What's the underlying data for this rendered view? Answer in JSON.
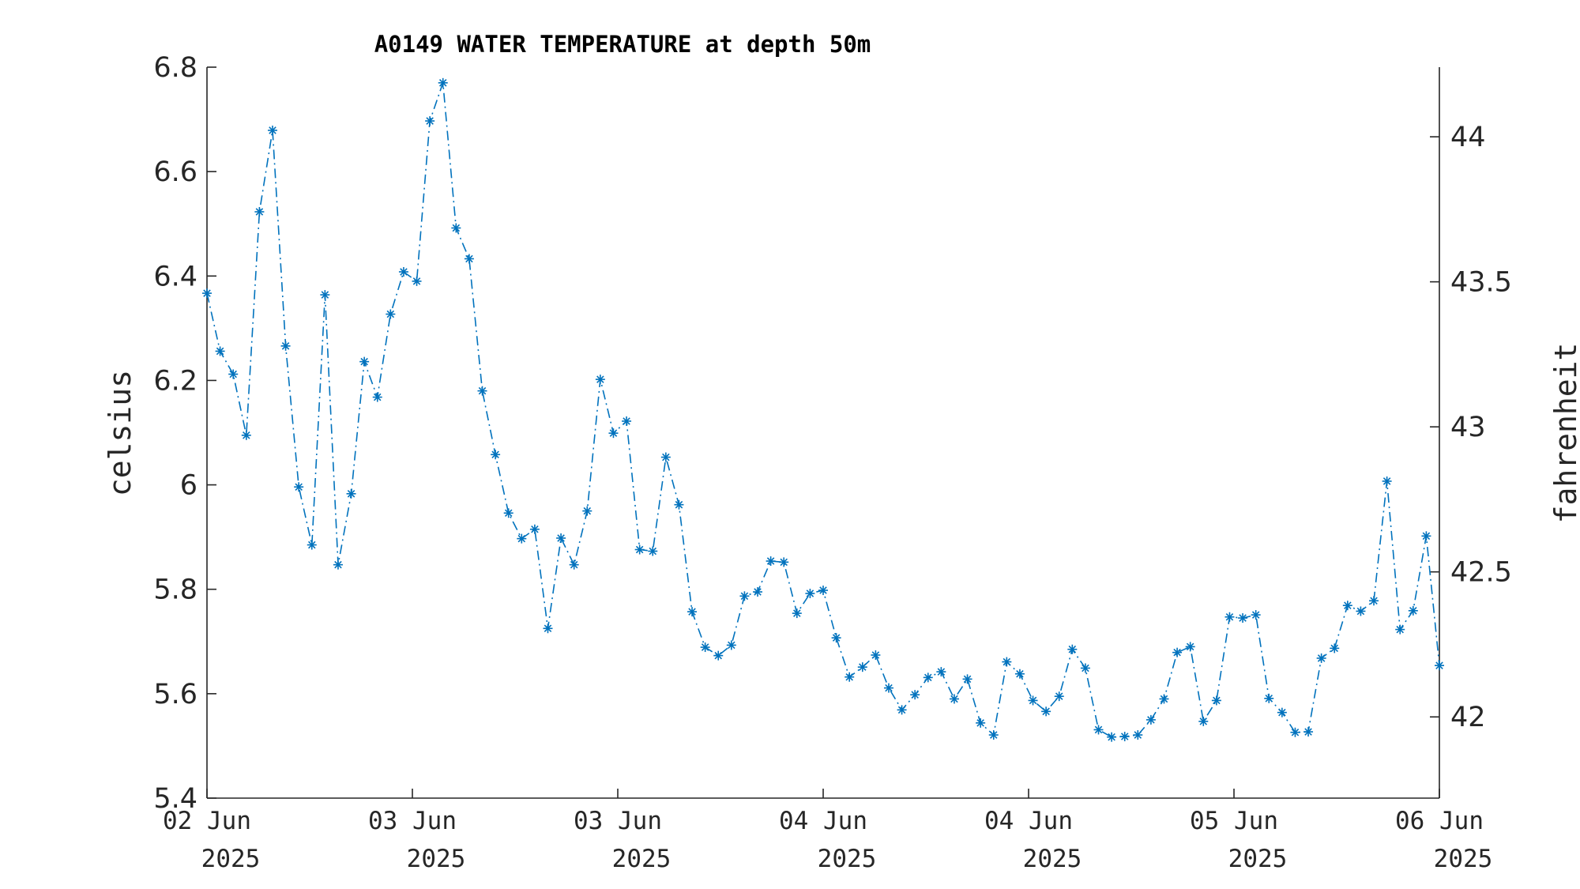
{
  "chart_data": {
    "type": "line",
    "title": "A0149 WATER TEMPERATURE at depth 50m",
    "ylabel": "celsius",
    "y2label": "fahrenheit",
    "ylim": [
      5.4,
      6.8
    ],
    "yticks": [
      "5.4",
      "5.6",
      "5.8",
      "6",
      "6.2",
      "6.4",
      "6.6",
      "6.8"
    ],
    "y2ticks": [
      "42",
      "42.5",
      "43",
      "43.5",
      "44"
    ],
    "xticks": [
      {
        "line1": "02 Jun",
        "line2": "2025"
      },
      {
        "line1": "03 Jun",
        "line2": "2025"
      },
      {
        "line1": "03 Jun",
        "line2": "2025"
      },
      {
        "line1": "04 Jun",
        "line2": "2025"
      },
      {
        "line1": "04 Jun",
        "line2": "2025"
      },
      {
        "line1": "05 Jun",
        "line2": "2025"
      },
      {
        "line1": "06 Jun",
        "line2": "2025"
      }
    ],
    "marker": "asterisk",
    "line_style": "dash-dot",
    "color": "#0072BD",
    "series": [
      {
        "values": [
          6.367,
          6.256,
          6.212,
          6.095,
          6.523,
          6.679,
          6.266,
          5.996,
          5.885,
          6.364,
          5.847,
          5.983,
          6.236,
          6.168,
          6.327,
          6.408,
          6.39,
          6.697,
          6.77,
          6.492,
          6.433,
          6.18,
          6.058,
          5.946,
          5.897,
          5.915,
          5.725,
          5.898,
          5.847,
          5.95,
          6.202,
          6.099,
          6.122,
          5.876,
          5.873,
          6.053,
          5.962,
          5.757,
          5.689,
          5.673,
          5.693,
          5.787,
          5.795,
          5.854,
          5.852,
          5.754,
          5.792,
          5.798,
          5.707,
          5.632,
          5.651,
          5.674,
          5.611,
          5.569,
          5.598,
          5.631,
          5.642,
          5.59,
          5.628,
          5.544,
          5.521,
          5.661,
          5.638,
          5.587,
          5.566,
          5.595,
          5.685,
          5.649,
          5.531,
          5.517,
          5.518,
          5.521,
          5.55,
          5.59,
          5.679,
          5.69,
          5.547,
          5.587,
          5.747,
          5.745,
          5.751,
          5.591,
          5.564,
          5.526,
          5.527,
          5.668,
          5.687,
          5.769,
          5.758,
          5.778,
          6.007,
          5.723,
          5.759,
          5.902,
          5.654
        ]
      }
    ]
  }
}
